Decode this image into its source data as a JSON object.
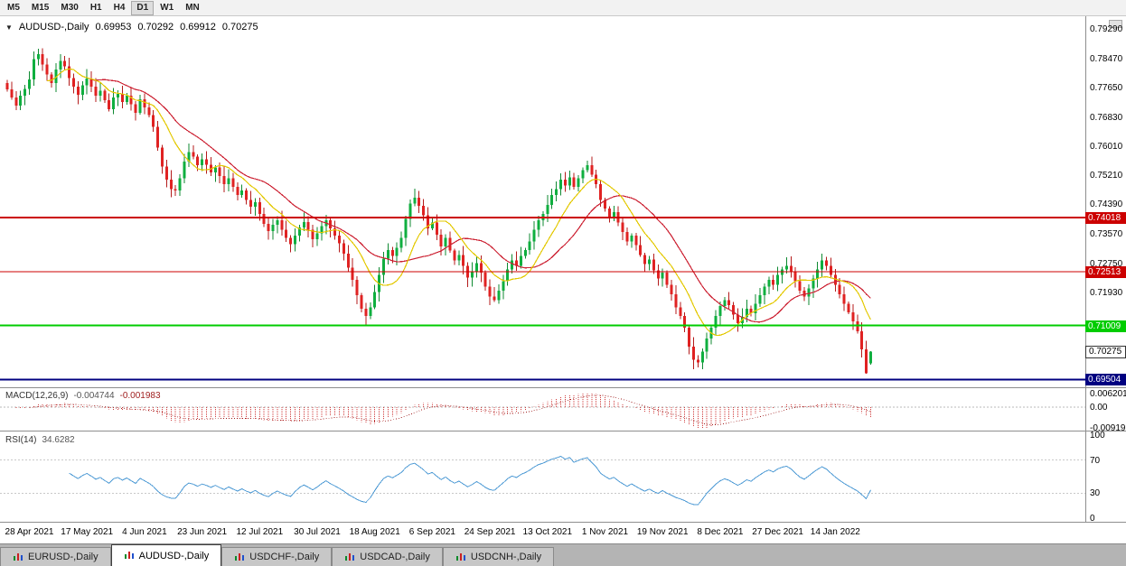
{
  "icons": {
    "symbol_dropdown": "▼"
  },
  "toolbar": {
    "timeframes": [
      "M5",
      "M15",
      "M30",
      "H1",
      "H4",
      "D1",
      "W1",
      "MN"
    ],
    "active_timeframe": "D1"
  },
  "chart": {
    "header": {
      "title": "AUDUSD-,Daily",
      "open": "0.69953",
      "high": "0.70292",
      "low": "0.69912",
      "close": "0.70275"
    },
    "price_axis_labels": [
      "0.79290",
      "0.78470",
      "0.77650",
      "0.76830",
      "0.76010",
      "0.75210",
      "0.74390",
      "0.73570",
      "0.72750",
      "0.71930"
    ],
    "date_axis_labels": [
      "28 Apr 2021",
      "17 May 2021",
      "4 Jun 2021",
      "23 Jun 2021",
      "12 Jul 2021",
      "30 Jul 2021",
      "18 Aug 2021",
      "6 Sep 2021",
      "24 Sep 2021",
      "13 Oct 2021",
      "1 Nov 2021",
      "19 Nov 2021",
      "8 Dec 2021",
      "27 Dec 2021",
      "14 Jan 2022"
    ]
  },
  "indicators": {
    "macd": {
      "label": "MACD(12,26,9)",
      "main_value": "-0.004744",
      "signal_value": "-0.001983",
      "axis_labels": [
        "0.006201",
        "0.00",
        "-0.009197"
      ]
    },
    "rsi": {
      "label": "RSI(14)",
      "value": "34.6282",
      "axis_labels": [
        "100",
        "70",
        "30",
        "0"
      ]
    }
  },
  "tabs": [
    {
      "label": "EURUSD-,Daily",
      "active": false
    },
    {
      "label": "AUDUSD-,Daily",
      "active": true
    },
    {
      "label": "USDCHF-,Daily",
      "active": false
    },
    {
      "label": "USDCAD-,Daily",
      "active": false
    },
    {
      "label": "USDCNH-,Daily",
      "active": false
    }
  ],
  "chart_data": {
    "type": "candlestick",
    "symbol": "AUDUSD",
    "timeframe": "Daily",
    "last_candle_ohlc": {
      "open": 0.69953,
      "high": 0.70292,
      "low": 0.69912,
      "close": 0.70275
    },
    "closes": [
      0.776,
      0.7738,
      0.7715,
      0.7742,
      0.7762,
      0.7788,
      0.7845,
      0.7858,
      0.783,
      0.7802,
      0.7778,
      0.7815,
      0.784,
      0.7825,
      0.7792,
      0.7768,
      0.7745,
      0.7772,
      0.779,
      0.7768,
      0.7742,
      0.7756,
      0.773,
      0.7705,
      0.7738,
      0.7748,
      0.7725,
      0.7742,
      0.7718,
      0.7695,
      0.7732,
      0.771,
      0.7688,
      0.7655,
      0.7598,
      0.7545,
      0.7508,
      0.7482,
      0.7478,
      0.7512,
      0.7558,
      0.7585,
      0.7572,
      0.7548,
      0.7565,
      0.755,
      0.7528,
      0.7542,
      0.7518,
      0.7495,
      0.7512,
      0.7488,
      0.7465,
      0.7478,
      0.7452,
      0.7432,
      0.7445,
      0.7412,
      0.7385,
      0.7365,
      0.7382,
      0.7395,
      0.7368,
      0.7345,
      0.7328,
      0.7352,
      0.7375,
      0.739,
      0.7368,
      0.7342,
      0.7358,
      0.7378,
      0.7395,
      0.7372,
      0.7352,
      0.733,
      0.7302,
      0.7262,
      0.7228,
      0.7185,
      0.7148,
      0.7128,
      0.7152,
      0.7195,
      0.7242,
      0.7288,
      0.7312,
      0.7295,
      0.7318,
      0.7345,
      0.7398,
      0.7442,
      0.7458,
      0.7435,
      0.7408,
      0.7372,
      0.7388,
      0.7355,
      0.7322,
      0.7345,
      0.731,
      0.7282,
      0.7298,
      0.7268,
      0.7235,
      0.7252,
      0.7275,
      0.7248,
      0.721,
      0.7182,
      0.7172,
      0.7198,
      0.7225,
      0.7258,
      0.7282,
      0.7268,
      0.7295,
      0.7312,
      0.7335,
      0.7368,
      0.7395,
      0.7412,
      0.7438,
      0.7465,
      0.7482,
      0.7508,
      0.7492,
      0.7515,
      0.7488,
      0.7512,
      0.7535,
      0.7548,
      0.7522,
      0.7495,
      0.7452,
      0.7428,
      0.7405,
      0.7418,
      0.7388,
      0.7362,
      0.7335,
      0.7352,
      0.7325,
      0.7298,
      0.7272,
      0.7285,
      0.7255,
      0.7232,
      0.7248,
      0.7215,
      0.7188,
      0.7152,
      0.7128,
      0.7095,
      0.7042,
      0.7005,
      0.6998,
      0.7028,
      0.7065,
      0.7095,
      0.7128,
      0.7155,
      0.7172,
      0.7158,
      0.7132,
      0.7108,
      0.7125,
      0.7148,
      0.7135,
      0.7162,
      0.7185,
      0.721,
      0.7228,
      0.7215,
      0.7242,
      0.7258,
      0.7268,
      0.7252,
      0.7225,
      0.7198,
      0.7182,
      0.7205,
      0.7232,
      0.7258,
      0.7282,
      0.7268,
      0.7242,
      0.7215,
      0.7188,
      0.7162,
      0.7138,
      0.7112,
      0.7085,
      0.7035,
      0.6968,
      0.70275
    ],
    "horizontal_lines": [
      {
        "price": 0.74018,
        "color": "#cc0000",
        "label": "0.74018",
        "width": 2
      },
      {
        "price": 0.72513,
        "color": "#cc0000",
        "label": "0.72513",
        "width": 1
      },
      {
        "price": 0.71009,
        "color": "#00cc00",
        "label": "0.71009",
        "width": 2
      },
      {
        "price": 0.69504,
        "color": "#000080",
        "label": "0.69504",
        "width": 2
      }
    ],
    "current_price": {
      "value": 0.70275,
      "label": "0.70275"
    },
    "moving_averages": [
      {
        "period": 10,
        "color": "#e3c800"
      },
      {
        "period": 20,
        "color": "#cc2233"
      }
    ],
    "macd": {
      "fast": 12,
      "slow": 26,
      "signal": 9,
      "current_main": -0.004744,
      "current_signal": -0.001983,
      "ylim": [
        -0.0105,
        0.0085
      ]
    },
    "rsi": {
      "period": 14,
      "current": 34.6282,
      "levels": [
        70,
        30
      ],
      "ylim": [
        0,
        100
      ]
    },
    "ylim_main": [
      0.6929,
      0.7964
    ],
    "colors": {
      "up": "#0faf3f",
      "down": "#e02222",
      "wick_up": "#0f8a32",
      "wick_down": "#b41b1b",
      "macd_histogram": "#cf3a3a",
      "macd_signal": "#a02020",
      "rsi_line": "#4f9bd5",
      "background": "#ffffff"
    }
  }
}
